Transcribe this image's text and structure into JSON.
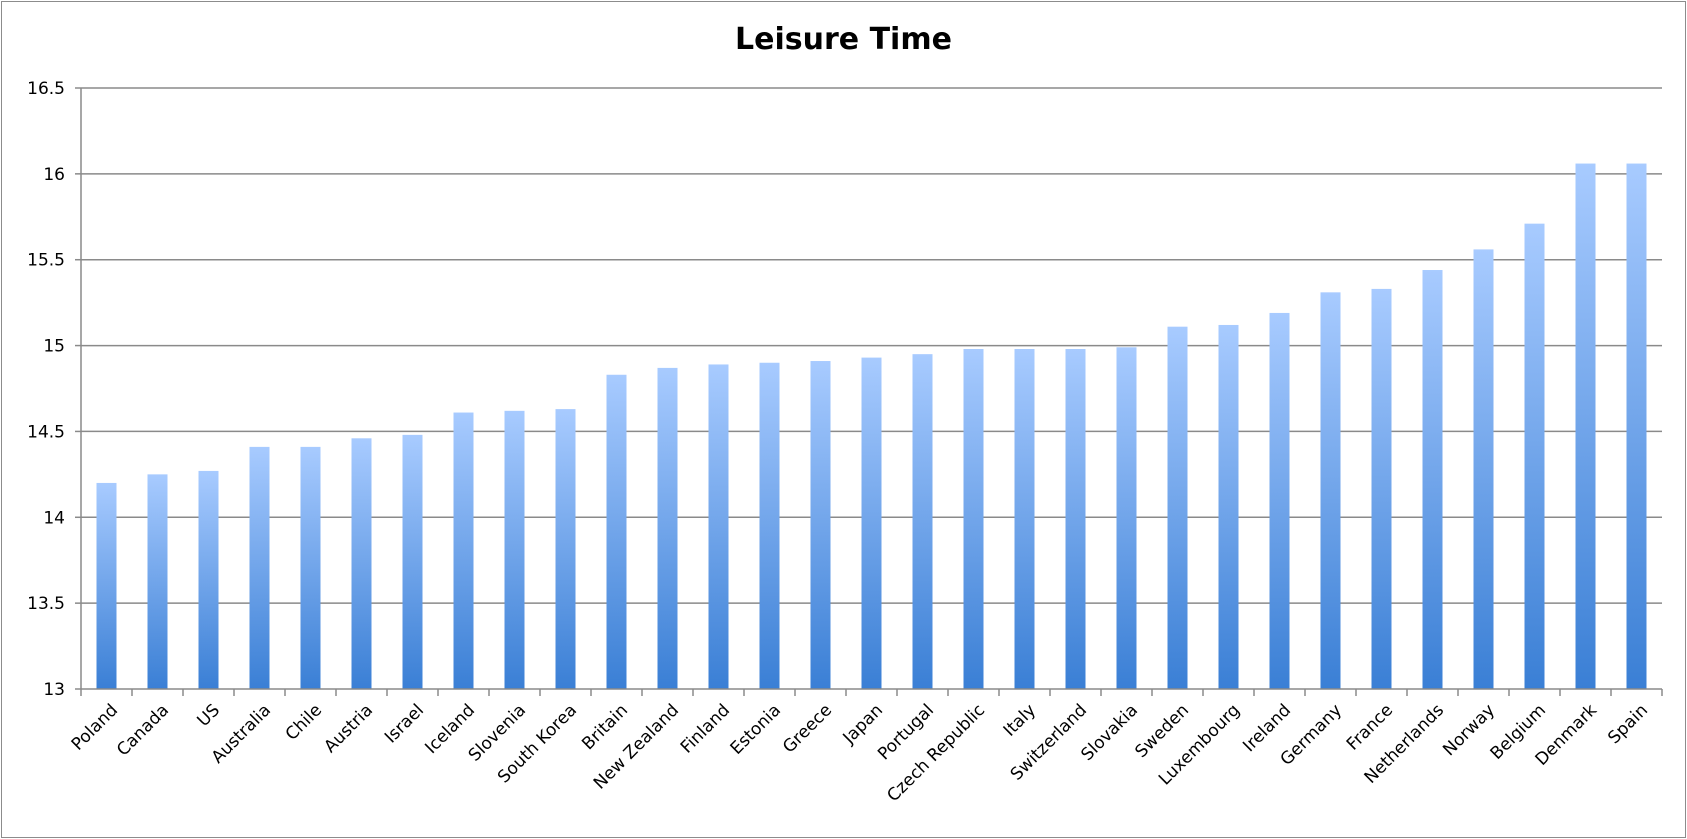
{
  "chart_data": {
    "type": "bar",
    "title": "Leisure Time",
    "xlabel": "",
    "ylabel": "",
    "ylim": [
      13,
      16.5
    ],
    "yticks": [
      13,
      13.5,
      14,
      14.5,
      15,
      15.5,
      16,
      16.5
    ],
    "ytick_labels": [
      "13",
      "13.5",
      "14",
      "14.5",
      "15",
      "15.5",
      "16",
      "16.5"
    ],
    "grid": true,
    "legend": "none",
    "bar_color_top": "#a8cbff",
    "bar_color_bottom": "#3a7fd5",
    "categories": [
      "Poland",
      "Canada",
      "US",
      "Australia",
      "Chile",
      "Austria",
      "Israel",
      "Iceland",
      "Slovenia",
      "South Korea",
      "Britain",
      "New Zealand",
      "Finland",
      "Estonia",
      "Greece",
      "Japan",
      "Portugal",
      "Czech Republic",
      "Italy",
      "Switzerland",
      "Slovakia",
      "Sweden",
      "Luxembourg",
      "Ireland",
      "Germany",
      "France",
      "Netherlands",
      "Norway",
      "Belgium",
      "Denmark",
      "Spain"
    ],
    "values": [
      14.2,
      14.25,
      14.27,
      14.41,
      14.41,
      14.46,
      14.48,
      14.61,
      14.62,
      14.63,
      14.83,
      14.87,
      14.89,
      14.9,
      14.91,
      14.93,
      14.95,
      14.98,
      14.98,
      14.98,
      14.99,
      15.11,
      15.12,
      15.19,
      15.31,
      15.33,
      15.44,
      15.56,
      15.71,
      16.06,
      16.06
    ]
  }
}
